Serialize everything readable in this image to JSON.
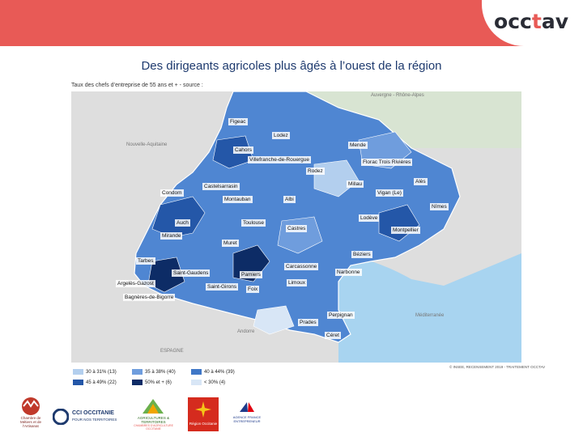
{
  "header": {
    "brand_prefix": "occ",
    "brand_accent": "t",
    "brand_suffix": "av",
    "accent_color": "#e85a56"
  },
  "slide": {
    "title": "Des dirigeants agricoles plus âgés à l’ouest de la région",
    "map_caption": "Taux des chefs d’entreprise de 55 ans et + - source :"
  },
  "map": {
    "sea_labels": {
      "top_right": "Auvergne - Rhône-Alpes",
      "left": "Nouvelle-Aquitaine",
      "bottom_left": "ESPAGNE",
      "sea": "Méditerranée",
      "andorra": "Andorre"
    },
    "places": {
      "figeac": "Figeac",
      "cahors": "Cahors",
      "lodez": "Lodez",
      "villefranche": "Villefranche-de-Rouergue",
      "mende": "Mende",
      "florac": "Florac Trois Rivières",
      "rodez": "Rodez",
      "castelsarrasin": "Castelsarrasin",
      "millau": "Millau",
      "ales": "Alès",
      "vigan": "Vigan (Le)",
      "condom": "Condom",
      "montauban": "Montauban",
      "albi": "Albi",
      "nimes": "Nîmes",
      "auch": "Auch",
      "toulouse": "Toulouse",
      "lodeve": "Lodève",
      "mirande": "Mirande",
      "muret": "Muret",
      "castres": "Castres",
      "montpellier": "Montpellier",
      "tarbes": "Tarbes",
      "carcassonne": "Carcassonne",
      "beziers": "Béziers",
      "saint_gaudens": "Saint-Gaudens",
      "pamiers": "Pamiers",
      "narbonne": "Narbonne",
      "argeles": "Argelès-Gazost",
      "saint_girons": "Saint-Girons",
      "foix": "Foix",
      "limoux": "Limoux",
      "bagneres": "Bagnères-de-Bigorre",
      "perpignan": "Perpignan",
      "prades": "Prades",
      "ceret": "Céret"
    },
    "copyright": "© INSEE, RECENSEMENT 2019 - TRAITEMENT OCCTAV"
  },
  "legend": [
    {
      "label": "30 à 31% (13)",
      "color": "#b3cfee"
    },
    {
      "label": "35 à 38% (40)",
      "color": "#6f9ddd"
    },
    {
      "label": "40 à 44% (39)",
      "color": "#3f77c7"
    },
    {
      "label": "45 à 49% (22)",
      "color": "#2457a8"
    },
    {
      "label": "50% et + (6)",
      "color": "#0d2c66"
    },
    {
      "label": "< 30% (4)",
      "color": "#d8e6f6"
    }
  ],
  "partners": {
    "cma": "Chambre de Métiers et de l'Artisanat",
    "cci": "CCI OCCITANIE",
    "cci_sub": "POUR NOS TERRITOIRES",
    "chambres": "AGRICULTURES & TERRITOIRES",
    "chambres_sub": "CHAMBRES D'AGRICULTURE OCCITANIE",
    "region": "Région Occitanie",
    "bpi": "AGENCE FRANCE ENTREPRENEUR"
  }
}
